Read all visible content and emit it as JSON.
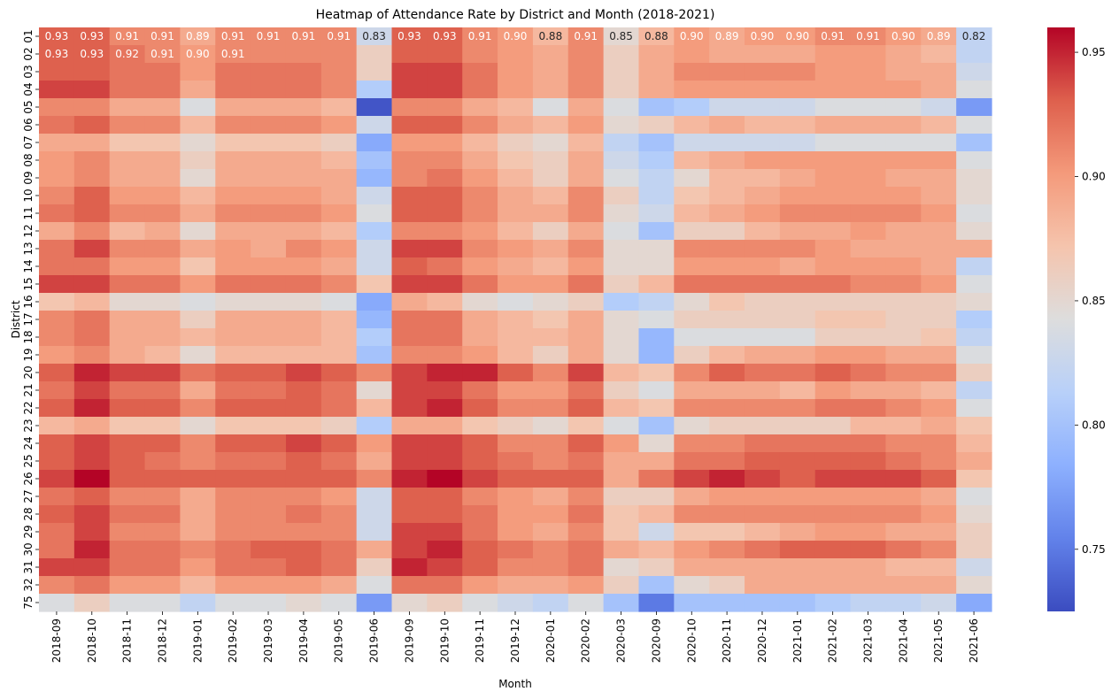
{
  "chart_data": {
    "type": "heatmap",
    "title": "Heatmap of Attendance Rate by District and Month (2018-2021)",
    "xlabel": "Month",
    "ylabel": "District",
    "colormap": "coolwarm",
    "color_range": [
      0.725,
      0.96
    ],
    "colorbar_ticks": [
      "0.75",
      "0.80",
      "0.85",
      "0.90",
      "0.95"
    ],
    "columns": [
      "2018-09",
      "2018-10",
      "2018-11",
      "2018-12",
      "2019-01",
      "2019-02",
      "2019-03",
      "2019-04",
      "2019-05",
      "2019-06",
      "2019-09",
      "2019-10",
      "2019-11",
      "2019-12",
      "2020-01",
      "2020-02",
      "2020-03",
      "2020-09",
      "2020-10",
      "2020-11",
      "2020-12",
      "2021-01",
      "2021-02",
      "2021-03",
      "2021-04",
      "2021-05",
      "2021-06"
    ],
    "rows": [
      "01",
      "02",
      "03",
      "04",
      "05",
      "06",
      "07",
      "08",
      "09",
      "10",
      "11",
      "12",
      "13",
      "14",
      "15",
      "16",
      "17",
      "18",
      "19",
      "20",
      "21",
      "22",
      "23",
      "24",
      "25",
      "26",
      "27",
      "28",
      "29",
      "30",
      "31",
      "32",
      "75"
    ],
    "annotated_rows": [
      "01",
      "02"
    ],
    "annotations": {
      "01": [
        "0.93",
        "0.93",
        "0.91",
        "0.91",
        "0.89",
        "0.91",
        "0.91",
        "0.91",
        "0.91",
        "0.83",
        "0.93",
        "0.93",
        "0.91",
        "0.90",
        "0.88",
        "0.91",
        "0.85",
        "0.88",
        "0.90",
        "0.89",
        "0.90",
        "0.90",
        "0.91",
        "0.91",
        "0.90",
        "0.89",
        "0.82"
      ],
      "02": [
        "0.93",
        "0.93",
        "0.92",
        "0.91",
        "0.90",
        "0.91"
      ]
    },
    "values": [
      [
        0.93,
        0.93,
        0.91,
        0.91,
        0.89,
        0.91,
        0.91,
        0.91,
        0.91,
        0.83,
        0.93,
        0.93,
        0.91,
        0.9,
        0.88,
        0.91,
        0.85,
        0.88,
        0.9,
        0.89,
        0.9,
        0.9,
        0.91,
        0.91,
        0.9,
        0.89,
        0.82
      ],
      [
        0.93,
        0.93,
        0.92,
        0.91,
        0.9,
        0.91,
        0.91,
        0.91,
        0.91,
        0.86,
        0.93,
        0.93,
        0.91,
        0.9,
        0.89,
        0.91,
        0.86,
        0.89,
        0.9,
        0.89,
        0.89,
        0.89,
        0.9,
        0.9,
        0.89,
        0.88,
        0.82
      ],
      [
        0.93,
        0.93,
        0.92,
        0.92,
        0.9,
        0.92,
        0.92,
        0.92,
        0.91,
        0.86,
        0.94,
        0.94,
        0.92,
        0.9,
        0.89,
        0.91,
        0.86,
        0.89,
        0.91,
        0.91,
        0.91,
        0.91,
        0.9,
        0.9,
        0.89,
        0.89,
        0.83
      ],
      [
        0.94,
        0.94,
        0.92,
        0.92,
        0.89,
        0.92,
        0.92,
        0.92,
        0.91,
        0.81,
        0.94,
        0.94,
        0.92,
        0.9,
        0.89,
        0.91,
        0.86,
        0.89,
        0.9,
        0.9,
        0.9,
        0.9,
        0.9,
        0.9,
        0.9,
        0.89,
        0.84
      ],
      [
        0.91,
        0.91,
        0.89,
        0.89,
        0.84,
        0.89,
        0.89,
        0.89,
        0.88,
        0.73,
        0.91,
        0.91,
        0.89,
        0.88,
        0.84,
        0.89,
        0.84,
        0.8,
        0.81,
        0.83,
        0.83,
        0.83,
        0.84,
        0.84,
        0.84,
        0.83,
        0.77
      ],
      [
        0.92,
        0.93,
        0.91,
        0.91,
        0.88,
        0.91,
        0.91,
        0.91,
        0.9,
        0.83,
        0.93,
        0.93,
        0.91,
        0.89,
        0.88,
        0.9,
        0.85,
        0.86,
        0.88,
        0.89,
        0.88,
        0.88,
        0.89,
        0.89,
        0.89,
        0.88,
        0.84
      ],
      [
        0.89,
        0.89,
        0.87,
        0.87,
        0.85,
        0.87,
        0.87,
        0.87,
        0.86,
        0.78,
        0.9,
        0.9,
        0.88,
        0.86,
        0.85,
        0.88,
        0.82,
        0.8,
        0.83,
        0.83,
        0.83,
        0.83,
        0.84,
        0.84,
        0.84,
        0.84,
        0.8
      ],
      [
        0.9,
        0.91,
        0.89,
        0.89,
        0.86,
        0.89,
        0.89,
        0.89,
        0.88,
        0.8,
        0.91,
        0.91,
        0.89,
        0.87,
        0.86,
        0.89,
        0.83,
        0.81,
        0.88,
        0.89,
        0.9,
        0.9,
        0.9,
        0.9,
        0.9,
        0.9,
        0.84
      ],
      [
        0.9,
        0.91,
        0.89,
        0.89,
        0.85,
        0.89,
        0.89,
        0.89,
        0.89,
        0.79,
        0.91,
        0.92,
        0.9,
        0.88,
        0.86,
        0.89,
        0.84,
        0.82,
        0.85,
        0.88,
        0.88,
        0.89,
        0.9,
        0.9,
        0.89,
        0.89,
        0.85
      ],
      [
        0.91,
        0.93,
        0.9,
        0.9,
        0.88,
        0.9,
        0.9,
        0.9,
        0.89,
        0.83,
        0.93,
        0.93,
        0.91,
        0.89,
        0.88,
        0.91,
        0.86,
        0.82,
        0.87,
        0.88,
        0.89,
        0.9,
        0.9,
        0.9,
        0.9,
        0.89,
        0.85
      ],
      [
        0.92,
        0.93,
        0.91,
        0.91,
        0.89,
        0.91,
        0.91,
        0.91,
        0.9,
        0.84,
        0.93,
        0.93,
        0.91,
        0.89,
        0.89,
        0.91,
        0.85,
        0.83,
        0.88,
        0.89,
        0.9,
        0.91,
        0.91,
        0.91,
        0.91,
        0.9,
        0.84
      ],
      [
        0.89,
        0.91,
        0.88,
        0.89,
        0.85,
        0.89,
        0.89,
        0.89,
        0.88,
        0.81,
        0.91,
        0.91,
        0.9,
        0.88,
        0.86,
        0.89,
        0.84,
        0.8,
        0.86,
        0.86,
        0.88,
        0.89,
        0.89,
        0.9,
        0.89,
        0.89,
        0.85
      ],
      [
        0.92,
        0.94,
        0.91,
        0.91,
        0.89,
        0.9,
        0.89,
        0.91,
        0.9,
        0.83,
        0.94,
        0.94,
        0.91,
        0.9,
        0.89,
        0.91,
        0.85,
        0.85,
        0.91,
        0.91,
        0.91,
        0.91,
        0.9,
        0.89,
        0.89,
        0.89,
        0.89
      ],
      [
        0.92,
        0.92,
        0.9,
        0.9,
        0.87,
        0.9,
        0.9,
        0.9,
        0.89,
        0.83,
        0.93,
        0.92,
        0.9,
        0.89,
        0.88,
        0.9,
        0.85,
        0.85,
        0.9,
        0.9,
        0.9,
        0.89,
        0.9,
        0.9,
        0.9,
        0.89,
        0.82
      ],
      [
        0.94,
        0.94,
        0.92,
        0.92,
        0.9,
        0.92,
        0.92,
        0.92,
        0.91,
        0.87,
        0.94,
        0.94,
        0.92,
        0.9,
        0.9,
        0.92,
        0.86,
        0.88,
        0.92,
        0.92,
        0.92,
        0.92,
        0.92,
        0.91,
        0.91,
        0.9,
        0.84
      ],
      [
        0.87,
        0.88,
        0.85,
        0.85,
        0.84,
        0.85,
        0.85,
        0.85,
        0.84,
        0.78,
        0.89,
        0.88,
        0.85,
        0.84,
        0.85,
        0.86,
        0.81,
        0.82,
        0.85,
        0.87,
        0.86,
        0.86,
        0.86,
        0.86,
        0.86,
        0.86,
        0.85
      ],
      [
        0.91,
        0.92,
        0.89,
        0.89,
        0.86,
        0.89,
        0.89,
        0.89,
        0.88,
        0.79,
        0.92,
        0.92,
        0.89,
        0.88,
        0.87,
        0.89,
        0.85,
        0.84,
        0.86,
        0.86,
        0.86,
        0.86,
        0.87,
        0.87,
        0.86,
        0.86,
        0.81
      ],
      [
        0.91,
        0.92,
        0.89,
        0.89,
        0.88,
        0.89,
        0.89,
        0.89,
        0.88,
        0.81,
        0.92,
        0.92,
        0.89,
        0.88,
        0.88,
        0.89,
        0.85,
        0.79,
        0.84,
        0.84,
        0.84,
        0.84,
        0.86,
        0.86,
        0.86,
        0.87,
        0.82
      ],
      [
        0.9,
        0.91,
        0.89,
        0.88,
        0.85,
        0.88,
        0.88,
        0.88,
        0.88,
        0.8,
        0.91,
        0.91,
        0.9,
        0.88,
        0.86,
        0.89,
        0.85,
        0.79,
        0.86,
        0.88,
        0.89,
        0.89,
        0.9,
        0.9,
        0.89,
        0.89,
        0.84
      ],
      [
        0.93,
        0.95,
        0.94,
        0.94,
        0.92,
        0.93,
        0.93,
        0.94,
        0.93,
        0.91,
        0.94,
        0.95,
        0.95,
        0.93,
        0.91,
        0.94,
        0.88,
        0.87,
        0.91,
        0.93,
        0.92,
        0.92,
        0.93,
        0.92,
        0.91,
        0.91,
        0.86
      ],
      [
        0.92,
        0.94,
        0.92,
        0.92,
        0.89,
        0.92,
        0.92,
        0.93,
        0.92,
        0.85,
        0.94,
        0.94,
        0.92,
        0.9,
        0.9,
        0.92,
        0.86,
        0.84,
        0.89,
        0.89,
        0.89,
        0.88,
        0.9,
        0.89,
        0.89,
        0.88,
        0.82
      ],
      [
        0.93,
        0.95,
        0.93,
        0.93,
        0.91,
        0.93,
        0.93,
        0.93,
        0.92,
        0.88,
        0.94,
        0.95,
        0.93,
        0.91,
        0.91,
        0.93,
        0.88,
        0.87,
        0.91,
        0.91,
        0.91,
        0.91,
        0.92,
        0.92,
        0.91,
        0.9,
        0.84
      ],
      [
        0.88,
        0.89,
        0.87,
        0.87,
        0.85,
        0.87,
        0.87,
        0.87,
        0.86,
        0.81,
        0.89,
        0.89,
        0.87,
        0.86,
        0.85,
        0.87,
        0.84,
        0.8,
        0.85,
        0.86,
        0.86,
        0.86,
        0.86,
        0.88,
        0.88,
        0.89,
        0.87
      ],
      [
        0.93,
        0.94,
        0.93,
        0.93,
        0.91,
        0.93,
        0.93,
        0.94,
        0.93,
        0.9,
        0.94,
        0.94,
        0.93,
        0.91,
        0.91,
        0.93,
        0.9,
        0.85,
        0.91,
        0.91,
        0.92,
        0.92,
        0.92,
        0.92,
        0.91,
        0.91,
        0.88
      ],
      [
        0.93,
        0.94,
        0.93,
        0.92,
        0.91,
        0.92,
        0.92,
        0.93,
        0.92,
        0.89,
        0.94,
        0.94,
        0.93,
        0.92,
        0.91,
        0.92,
        0.89,
        0.89,
        0.92,
        0.92,
        0.93,
        0.93,
        0.93,
        0.93,
        0.92,
        0.91,
        0.89
      ],
      [
        0.94,
        0.96,
        0.93,
        0.93,
        0.93,
        0.93,
        0.93,
        0.93,
        0.93,
        0.91,
        0.95,
        0.96,
        0.94,
        0.93,
        0.93,
        0.93,
        0.89,
        0.92,
        0.94,
        0.95,
        0.94,
        0.93,
        0.94,
        0.94,
        0.94,
        0.93,
        0.87
      ],
      [
        0.92,
        0.93,
        0.91,
        0.91,
        0.89,
        0.91,
        0.91,
        0.91,
        0.9,
        0.83,
        0.93,
        0.93,
        0.91,
        0.9,
        0.89,
        0.91,
        0.86,
        0.86,
        0.89,
        0.9,
        0.9,
        0.9,
        0.9,
        0.9,
        0.9,
        0.89,
        0.84
      ],
      [
        0.93,
        0.94,
        0.92,
        0.92,
        0.89,
        0.91,
        0.91,
        0.92,
        0.91,
        0.83,
        0.93,
        0.93,
        0.92,
        0.9,
        0.9,
        0.92,
        0.87,
        0.88,
        0.91,
        0.91,
        0.91,
        0.91,
        0.91,
        0.91,
        0.91,
        0.9,
        0.85
      ],
      [
        0.92,
        0.94,
        0.91,
        0.91,
        0.89,
        0.91,
        0.91,
        0.91,
        0.91,
        0.83,
        0.94,
        0.94,
        0.92,
        0.9,
        0.89,
        0.91,
        0.87,
        0.83,
        0.87,
        0.87,
        0.88,
        0.89,
        0.9,
        0.9,
        0.89,
        0.89,
        0.86
      ],
      [
        0.92,
        0.95,
        0.92,
        0.92,
        0.91,
        0.92,
        0.93,
        0.93,
        0.92,
        0.89,
        0.94,
        0.95,
        0.93,
        0.92,
        0.91,
        0.92,
        0.89,
        0.88,
        0.9,
        0.91,
        0.92,
        0.93,
        0.93,
        0.93,
        0.92,
        0.91,
        0.86
      ],
      [
        0.94,
        0.94,
        0.92,
        0.92,
        0.9,
        0.92,
        0.92,
        0.93,
        0.92,
        0.86,
        0.95,
        0.94,
        0.93,
        0.91,
        0.91,
        0.92,
        0.85,
        0.86,
        0.89,
        0.89,
        0.89,
        0.89,
        0.89,
        0.89,
        0.88,
        0.88,
        0.83
      ],
      [
        0.91,
        0.92,
        0.9,
        0.9,
        0.88,
        0.9,
        0.9,
        0.9,
        0.89,
        0.84,
        0.92,
        0.92,
        0.9,
        0.89,
        0.89,
        0.9,
        0.86,
        0.8,
        0.85,
        0.86,
        0.89,
        0.89,
        0.89,
        0.89,
        0.89,
        0.89,
        0.85
      ],
      [
        0.84,
        0.86,
        0.84,
        0.84,
        0.82,
        0.84,
        0.84,
        0.85,
        0.84,
        0.77,
        0.85,
        0.86,
        0.84,
        0.83,
        0.82,
        0.84,
        0.8,
        0.75,
        0.8,
        0.8,
        0.8,
        0.8,
        0.81,
        0.82,
        0.82,
        0.83,
        0.78
      ]
    ]
  }
}
